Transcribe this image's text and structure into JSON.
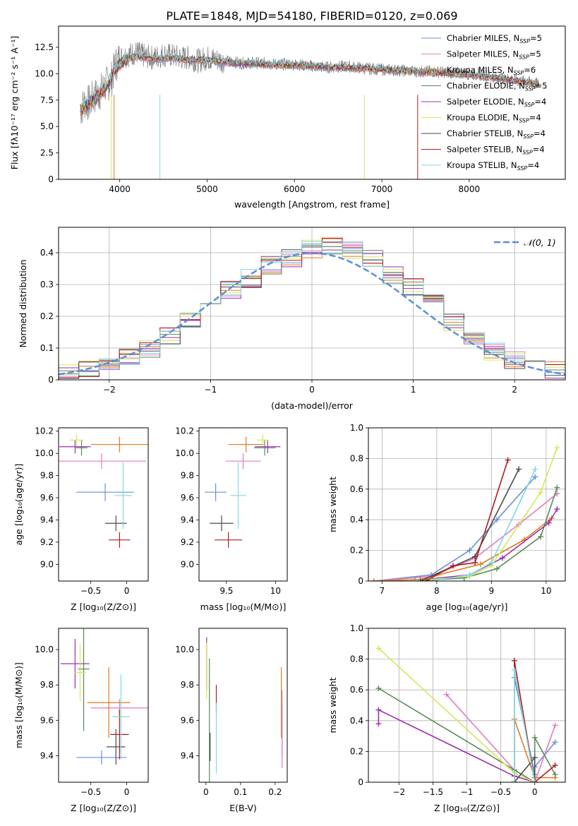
{
  "figure_title": "PLATE=1848, MJD=54180, FIBERID=0120, z=0.069",
  "colors": {
    "data": "#808080",
    "Chabrier MILES": "#6a8fd8",
    "Salpeter MILES": "#e07cc0",
    "Kroupa MILES": "#e07b20",
    "Chabrier ELODIE": "#5a8a5a",
    "Salpeter ELODIE": "#9b2fae",
    "Kroupa ELODIE": "#d4e85a",
    "Chabrier STELIB": "#4a4a4a",
    "Salpeter STELIB": "#b01c1c",
    "Kroupa STELIB": "#7fd8e0",
    "normal": "#5b8fd8",
    "grid": "#b0b0b0"
  },
  "chart_data": [
    {
      "id": "spectrum",
      "type": "line",
      "title": "PLATE=1848, MJD=54180, FIBERID=0120, z=0.069",
      "xlabel": "wavelength [Angstrom, rest frame]",
      "ylabel": "Flux [fλ10⁻¹⁷ erg cm⁻² s⁻¹ A⁻¹]",
      "xlim": [
        3300,
        9100
      ],
      "ylim": [
        0,
        14.5
      ],
      "xticks": [
        4000,
        5000,
        6000,
        7000,
        8000
      ],
      "yticks": [
        0.0,
        2.5,
        5.0,
        7.5,
        10.0,
        12.5
      ],
      "grid": false,
      "legend": "top-right",
      "legend_entries": [
        {
          "label": "Chabrier MILES, N",
          "sub": "SSP",
          "value": "=5",
          "model": "Chabrier MILES"
        },
        {
          "label": "Salpeter MILES, N",
          "sub": "SSP",
          "value": "=5",
          "model": "Salpeter MILES"
        },
        {
          "label": "Kroupa MILES, N",
          "sub": "SSP",
          "value": "=6",
          "model": "Kroupa MILES"
        },
        {
          "label": "Chabrier ELODIE, N",
          "sub": "SSP",
          "value": "=5",
          "model": "Chabrier ELODIE"
        },
        {
          "label": "Salpeter ELODIE, N",
          "sub": "SSP",
          "value": "=4",
          "model": "Salpeter ELODIE"
        },
        {
          "label": "Kroupa ELODIE, N",
          "sub": "SSP",
          "value": "=4",
          "model": "Kroupa ELODIE"
        },
        {
          "label": "Chabrier STELIB, N",
          "sub": "SSP",
          "value": "=4",
          "model": "Chabrier STELIB"
        },
        {
          "label": "Salpeter STELIB, N",
          "sub": "SSP",
          "value": "=4",
          "model": "Salpeter STELIB"
        },
        {
          "label": "Kroupa STELIB, N",
          "sub": "SSP",
          "value": "=4",
          "model": "Kroupa STELIB"
        }
      ],
      "data_x": [
        3550,
        3600,
        3650,
        3700,
        3750,
        3800,
        3850,
        3900,
        3950,
        4000,
        4100,
        4200,
        4300,
        4400,
        4500,
        4600,
        4700,
        4800,
        4900,
        5000,
        5200,
        5400,
        5600,
        5800,
        6000,
        6200,
        6400,
        6600,
        6800,
        7000,
        7200,
        7400,
        7600,
        7800,
        8000,
        8200,
        8400,
        8600,
        8800
      ],
      "data_y": [
        6.5,
        7.3,
        7.2,
        7.8,
        8.0,
        8.5,
        9.0,
        9.3,
        10.8,
        11.5,
        11.8,
        12.0,
        11.6,
        11.5,
        11.8,
        11.7,
        11.5,
        11.5,
        11.2,
        11.5,
        11.2,
        11.0,
        11.0,
        10.9,
        10.9,
        10.7,
        10.6,
        10.7,
        10.5,
        10.4,
        10.3,
        10.2,
        10.2,
        10.1,
        10.0,
        9.8,
        9.5,
        9.3,
        9.0
      ],
      "model_x": [
        3550,
        3650,
        3750,
        3850,
        3950,
        4050,
        4200,
        4400,
        4600,
        4800,
        5000,
        5300,
        5600,
        6000,
        6400,
        6800,
        7200,
        7600,
        8000,
        8400,
        8800
      ],
      "model_y": [
        6.6,
        7.2,
        7.9,
        8.8,
        10.4,
        11.3,
        11.6,
        11.4,
        11.5,
        11.3,
        11.3,
        11.0,
        10.9,
        10.8,
        10.6,
        10.5,
        10.3,
        10.1,
        9.9,
        9.5,
        9.0
      ]
    },
    {
      "id": "residuals",
      "type": "bar",
      "xlabel": "(data-model)/error",
      "ylabel": "Normed distribution",
      "xlim": [
        -2.5,
        2.5
      ],
      "ylim": [
        0,
        0.48
      ],
      "xticks": [
        -2,
        -1,
        0,
        1,
        2
      ],
      "yticks": [
        0.0,
        0.1,
        0.2,
        0.3,
        0.4
      ],
      "grid": true,
      "legend": "top-right",
      "legend_label": "𝒩(0, 1)",
      "bin_edges": [
        -2.5,
        -2.3,
        -2.1,
        -1.9,
        -1.7,
        -1.5,
        -1.3,
        -1.1,
        -0.9,
        -0.7,
        -0.5,
        -0.3,
        -0.1,
        0.1,
        0.3,
        0.5,
        0.7,
        0.9,
        1.1,
        1.3,
        1.5,
        1.7,
        1.9,
        2.1,
        2.3,
        2.5
      ],
      "hist_values": [
        0.02,
        0.03,
        0.05,
        0.07,
        0.1,
        0.14,
        0.19,
        0.24,
        0.28,
        0.32,
        0.36,
        0.38,
        0.41,
        0.42,
        0.41,
        0.38,
        0.33,
        0.29,
        0.24,
        0.18,
        0.12,
        0.09,
        0.06,
        0.04,
        0.03
      ]
    },
    {
      "id": "age-vs-z",
      "type": "scatter",
      "xlabel": "Z [log₁₀(Z/Z⊙)]",
      "ylabel": "age  [log₁₀(age/yr)]",
      "xlim": [
        -0.95,
        0.3
      ],
      "ylim": [
        8.85,
        10.23
      ],
      "xticks": [
        -0.5,
        0.0
      ],
      "yticks": [
        9.0,
        9.2,
        9.4,
        9.6,
        9.8,
        10.0,
        10.2
      ],
      "grid": false,
      "points": [
        {
          "model": "Chabrier MILES",
          "x": -0.3,
          "y": 9.65,
          "xerr": 0.4,
          "yerr": 0.08
        },
        {
          "model": "Salpeter MILES",
          "x": -0.35,
          "y": 9.93,
          "xerr": 0.62,
          "yerr": 0.07
        },
        {
          "model": "Kroupa MILES",
          "x": -0.1,
          "y": 10.08,
          "xerr": 0.4,
          "yerr": 0.07
        },
        {
          "model": "Chabrier ELODIE",
          "x": -0.63,
          "y": 10.05,
          "xerr": 0.08,
          "yerr": 0.07
        },
        {
          "model": "Salpeter ELODIE",
          "x": -0.72,
          "y": 10.06,
          "xerr": 0.22,
          "yerr": 0.06
        },
        {
          "model": "Kroupa ELODIE",
          "x": -0.7,
          "y": 10.12,
          "xerr": 0.09,
          "yerr": 0.05
        },
        {
          "model": "Chabrier STELIB",
          "x": -0.15,
          "y": 9.37,
          "xerr": 0.15,
          "yerr": 0.07
        },
        {
          "model": "Salpeter STELIB",
          "x": -0.1,
          "y": 9.22,
          "xerr": 0.15,
          "yerr": 0.07
        },
        {
          "model": "Kroupa STELIB",
          "x": -0.05,
          "y": 9.62,
          "xerr": 0.12,
          "yerr": 0.3
        }
      ]
    },
    {
      "id": "age-vs-mass",
      "type": "scatter",
      "xlabel": "mass [log₁₀(M/M⊙)]",
      "xlim": [
        9.22,
        10.12
      ],
      "ylim": [
        8.85,
        10.23
      ],
      "xticks": [
        9.5,
        10.0
      ],
      "yticks": [
        9.0,
        9.2,
        9.4,
        9.6,
        9.8,
        10.0,
        10.2
      ],
      "grid": false,
      "points": [
        {
          "model": "Chabrier MILES",
          "x": 9.39,
          "y": 9.65,
          "xerr": 0.11,
          "yerr": 0.08
        },
        {
          "model": "Salpeter MILES",
          "x": 9.67,
          "y": 9.93,
          "xerr": 0.18,
          "yerr": 0.07
        },
        {
          "model": "Kroupa MILES",
          "x": 9.7,
          "y": 10.08,
          "xerr": 0.18,
          "yerr": 0.07
        },
        {
          "model": "Chabrier ELODIE",
          "x": 9.89,
          "y": 10.05,
          "xerr": 0.11,
          "yerr": 0.07
        },
        {
          "model": "Salpeter ELODIE",
          "x": 9.92,
          "y": 10.06,
          "xerr": 0.13,
          "yerr": 0.06
        },
        {
          "model": "Kroupa ELODIE",
          "x": 9.87,
          "y": 10.12,
          "xerr": 0.06,
          "yerr": 0.05
        },
        {
          "model": "Chabrier STELIB",
          "x": 9.45,
          "y": 9.37,
          "xerr": 0.12,
          "yerr": 0.07
        },
        {
          "model": "Salpeter STELIB",
          "x": 9.52,
          "y": 9.22,
          "xerr": 0.14,
          "yerr": 0.07
        },
        {
          "model": "Kroupa STELIB",
          "x": 9.62,
          "y": 9.62,
          "xerr": 0.08,
          "yerr": 0.3
        }
      ]
    },
    {
      "id": "cumulative-age",
      "type": "line",
      "xlabel": "age  [log₁₀(age/yr)]",
      "ylabel": "mass weight",
      "xlim": [
        6.75,
        10.35
      ],
      "ylim": [
        0,
        1.0
      ],
      "xticks": [
        7,
        8,
        9,
        10
      ],
      "yticks": [
        0.0,
        0.2,
        0.4,
        0.6,
        0.8,
        1.0
      ],
      "grid": true,
      "series": [
        {
          "model": "Chabrier MILES",
          "x": [
            6.85,
            7.9,
            8.6,
            9.1,
            9.8
          ],
          "y": [
            0.0,
            0.04,
            0.2,
            0.4,
            0.68
          ]
        },
        {
          "model": "Salpeter MILES",
          "x": [
            6.85,
            7.9,
            8.7,
            9.5,
            10.2
          ],
          "y": [
            0.0,
            0.03,
            0.15,
            0.37,
            0.57
          ]
        },
        {
          "model": "Kroupa MILES",
          "x": [
            6.85,
            7.7,
            8.8,
            9.6,
            10.1
          ],
          "y": [
            0.0,
            0.01,
            0.11,
            0.27,
            0.41
          ]
        },
        {
          "model": "Chabrier ELODIE",
          "x": [
            7.6,
            8.5,
            9.1,
            9.9,
            10.2
          ],
          "y": [
            0.0,
            0.02,
            0.08,
            0.29,
            0.61
          ]
        },
        {
          "model": "Salpeter ELODIE",
          "x": [
            7.5,
            8.6,
            9.2,
            10.05,
            10.2
          ],
          "y": [
            0.0,
            0.04,
            0.15,
            0.38,
            0.47
          ]
        },
        {
          "model": "Kroupa ELODIE",
          "x": [
            7.5,
            8.6,
            9.0,
            9.9,
            10.2
          ],
          "y": [
            0.0,
            0.03,
            0.1,
            0.58,
            0.87
          ]
        },
        {
          "model": "Chabrier STELIB",
          "x": [
            7.7,
            8.7,
            9.5
          ],
          "y": [
            0.0,
            0.16,
            0.73
          ]
        },
        {
          "model": "Salpeter STELIB",
          "x": [
            7.8,
            8.3,
            8.7,
            9.3
          ],
          "y": [
            0.0,
            0.1,
            0.12,
            0.79
          ]
        },
        {
          "model": "Kroupa STELIB",
          "x": [
            7.9,
            8.6,
            9.0,
            9.8
          ],
          "y": [
            0.0,
            0.04,
            0.12,
            0.73
          ]
        }
      ]
    },
    {
      "id": "mass-vs-z",
      "type": "scatter",
      "xlabel": "Z [log₁₀(Z/Z⊙)]",
      "ylabel": "mass [log₁₀(M/M⊙)]",
      "xlim": [
        -0.95,
        0.3
      ],
      "ylim": [
        9.25,
        10.12
      ],
      "xticks": [
        -0.5,
        0.0
      ],
      "yticks": [
        9.4,
        9.6,
        9.8,
        10.0
      ],
      "grid": false,
      "points": [
        {
          "model": "Chabrier MILES",
          "x": -0.35,
          "y": 9.39,
          "xerr": 0.35,
          "yerr": 0.04
        },
        {
          "model": "Salpeter MILES",
          "x": -0.1,
          "y": 9.67,
          "xerr": 0.4,
          "yerr": 0.05
        },
        {
          "model": "Kroupa MILES",
          "x": -0.25,
          "y": 9.7,
          "xerr": 0.3,
          "yerr": 0.2
        },
        {
          "model": "Chabrier ELODIE",
          "x": -0.6,
          "y": 9.89,
          "xerr": 0.08,
          "yerr": 0.35
        },
        {
          "model": "Salpeter ELODIE",
          "x": -0.72,
          "y": 9.92,
          "xerr": 0.2,
          "yerr": 0.14
        },
        {
          "model": "Kroupa ELODIE",
          "x": -0.65,
          "y": 9.87,
          "xerr": 0.08,
          "yerr": 0.16
        },
        {
          "model": "Chabrier STELIB",
          "x": -0.15,
          "y": 9.45,
          "xerr": 0.13,
          "yerr": 0.1
        },
        {
          "model": "Salpeter STELIB",
          "x": -0.1,
          "y": 9.52,
          "xerr": 0.13,
          "yerr": 0.14
        },
        {
          "model": "Kroupa STELIB",
          "x": -0.08,
          "y": 9.62,
          "xerr": 0.12,
          "yerr": 0.24
        }
      ]
    },
    {
      "id": "mass-vs-ebv",
      "type": "scatter",
      "xlabel": "E(B-V)",
      "xlim": [
        -0.02,
        0.235
      ],
      "ylim": [
        9.25,
        10.12
      ],
      "xticks": [
        0.0,
        0.1,
        0.2
      ],
      "yticks": [
        9.4,
        9.6,
        9.8,
        10.0
      ],
      "grid": false,
      "points": [
        {
          "model": "Chabrier MILES",
          "x": 0.22,
          "y": 9.55,
          "yerr": 0.15
        },
        {
          "model": "Salpeter MILES",
          "x": 0.22,
          "y": 9.55,
          "yerr": 0.22
        },
        {
          "model": "Kroupa MILES",
          "x": 0.218,
          "y": 9.7,
          "yerr": 0.2
        },
        {
          "model": "Chabrier ELODIE",
          "x": 0.01,
          "y": 9.6,
          "yerr": 0.35
        },
        {
          "model": "Salpeter ELODIE",
          "x": 0.002,
          "y": 9.92,
          "yerr": 0.15
        },
        {
          "model": "Kroupa ELODIE",
          "x": 0.002,
          "y": 9.88,
          "yerr": 0.16
        },
        {
          "model": "Chabrier STELIB",
          "x": 0.012,
          "y": 9.45,
          "yerr": 0.08
        },
        {
          "model": "Salpeter STELIB",
          "x": 0.03,
          "y": 9.72,
          "yerr": 0.08
        },
        {
          "model": "Kroupa STELIB",
          "x": 0.03,
          "y": 9.5,
          "yerr": 0.2
        }
      ]
    },
    {
      "id": "cumulative-z",
      "type": "line",
      "xlabel": "Z [log₁₀(Z/Z⊙)]",
      "ylabel": "mass weight",
      "xlim": [
        -2.45,
        0.45
      ],
      "ylim": [
        0,
        1.0
      ],
      "xticks": [
        -2.0,
        -1.5,
        -1.0,
        -0.5,
        0.0
      ],
      "yticks": [
        0.0,
        0.2,
        0.4,
        0.6,
        0.8,
        1.0
      ],
      "grid": true,
      "series": [
        {
          "model": "Chabrier MILES",
          "x": [
            -0.3,
            -0.3,
            0.0,
            0.0,
            0.3
          ],
          "y": [
            0.0,
            0.68,
            0.05,
            0.1,
            0.26
          ]
        },
        {
          "model": "Salpeter MILES",
          "x": [
            -1.3,
            -0.3,
            0.0,
            0.3
          ],
          "y": [
            0.57,
            0.08,
            0.0,
            0.37
          ]
        },
        {
          "model": "Kroupa MILES",
          "x": [
            -0.3,
            -0.3,
            0.0,
            0.3
          ],
          "y": [
            0.0,
            0.41,
            0.03,
            0.03
          ]
        },
        {
          "model": "Chabrier ELODIE",
          "x": [
            -2.3,
            -0.3,
            0.0,
            0.0,
            0.3
          ],
          "y": [
            0.61,
            0.08,
            0.0,
            0.29,
            0.05
          ]
        },
        {
          "model": "Salpeter ELODIE",
          "x": [
            -2.3,
            -2.3,
            -0.3,
            0.0
          ],
          "y": [
            0.38,
            0.47,
            0.04,
            0.0
          ]
        },
        {
          "model": "Kroupa ELODIE",
          "x": [
            -2.3,
            -0.3,
            0.0,
            0.3
          ],
          "y": [
            0.87,
            0.06,
            0.0,
            0.0
          ]
        },
        {
          "model": "Chabrier STELIB",
          "x": [
            -0.3,
            0.0,
            0.0
          ],
          "y": [
            0.0,
            0.16,
            0.0
          ]
        },
        {
          "model": "Salpeter STELIB",
          "x": [
            -0.3,
            -0.3,
            0.0,
            0.3
          ],
          "y": [
            0.0,
            0.79,
            0.0,
            0.11
          ]
        },
        {
          "model": "Kroupa STELIB",
          "x": [
            -0.3,
            -0.3,
            0.0
          ],
          "y": [
            0.0,
            0.73,
            0.0
          ]
        }
      ]
    }
  ]
}
